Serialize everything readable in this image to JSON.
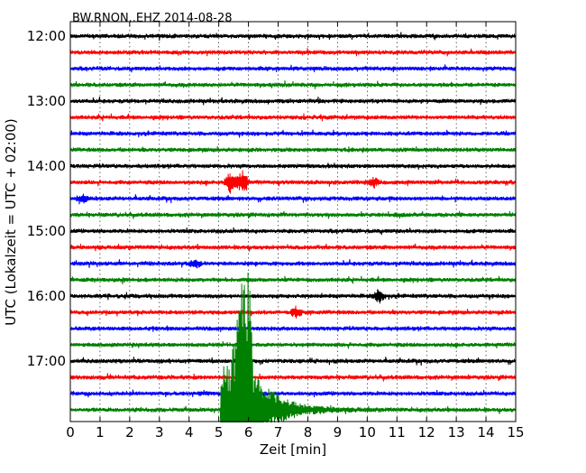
{
  "chart_data": {
    "type": "line",
    "title": "BW.RNON..EHZ 2014-08-28",
    "xlabel": "Zeit  [min]",
    "ylabel": "UTC (Lokalzeit = UTC + 02:00)",
    "xlim": [
      0,
      15
    ],
    "x_ticks": [
      "0",
      "1",
      "2",
      "3",
      "4",
      "5",
      "6",
      "7",
      "8",
      "9",
      "10",
      "11",
      "12",
      "13",
      "14",
      "15"
    ],
    "y_tick_labels": [
      "12:00",
      "13:00",
      "14:00",
      "15:00",
      "16:00",
      "17:00"
    ],
    "grid": true,
    "trace_interval_minutes": 15,
    "trace_colors": [
      "#000000",
      "#ff0000",
      "#0000ff",
      "#008000"
    ],
    "traces": [
      {
        "start": "12:00",
        "color": "#000000"
      },
      {
        "start": "12:15",
        "color": "#ff0000"
      },
      {
        "start": "12:30",
        "color": "#0000ff"
      },
      {
        "start": "12:45",
        "color": "#008000"
      },
      {
        "start": "13:00",
        "color": "#000000"
      },
      {
        "start": "13:15",
        "color": "#ff0000"
      },
      {
        "start": "13:30",
        "color": "#0000ff"
      },
      {
        "start": "13:45",
        "color": "#008000"
      },
      {
        "start": "14:00",
        "color": "#000000"
      },
      {
        "start": "14:15",
        "color": "#ff0000",
        "events": [
          {
            "t": 5.4,
            "amp": 1.4
          },
          {
            "t": 5.8,
            "amp": 1.5
          },
          {
            "t": 10.2,
            "amp": 0.6
          }
        ]
      },
      {
        "start": "14:30",
        "color": "#0000ff",
        "events": [
          {
            "t": 0.4,
            "amp": 0.4
          }
        ]
      },
      {
        "start": "14:45",
        "color": "#008000"
      },
      {
        "start": "15:00",
        "color": "#000000"
      },
      {
        "start": "15:15",
        "color": "#ff0000"
      },
      {
        "start": "15:30",
        "color": "#0000ff",
        "events": [
          {
            "t": 4.2,
            "amp": 0.5
          }
        ]
      },
      {
        "start": "15:45",
        "color": "#008000"
      },
      {
        "start": "16:00",
        "color": "#000000",
        "events": [
          {
            "t": 10.4,
            "amp": 0.8
          }
        ]
      },
      {
        "start": "16:15",
        "color": "#ff0000",
        "events": [
          {
            "t": 7.6,
            "amp": 0.7
          }
        ]
      },
      {
        "start": "16:30",
        "color": "#0000ff"
      },
      {
        "start": "16:45",
        "color": "#008000"
      },
      {
        "start": "17:00",
        "color": "#000000"
      },
      {
        "start": "17:15",
        "color": "#ff0000"
      },
      {
        "start": "17:30",
        "color": "#0000ff"
      },
      {
        "start": "17:45",
        "color": "#008000",
        "earthquake": {
          "onset": 5.05,
          "peak": 5.9,
          "coda_end": 9.0
        }
      }
    ]
  }
}
